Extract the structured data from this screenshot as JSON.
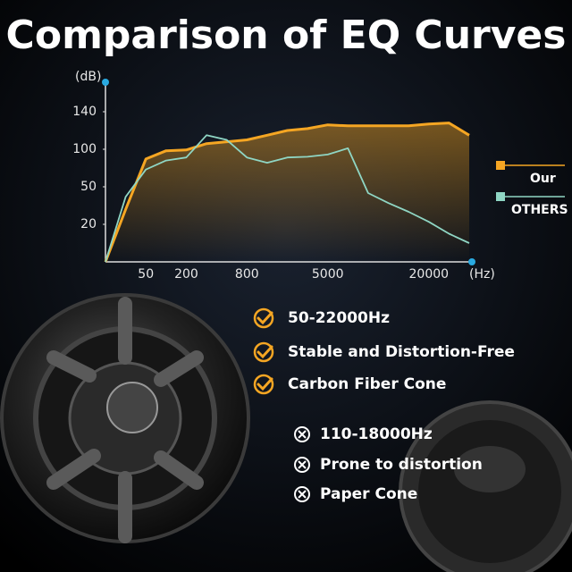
{
  "chart_data": {
    "type": "line",
    "title": "Comparison of EQ Curves",
    "y_unit": "(dB)",
    "x_unit": "(Hz)",
    "categories": [
      null,
      null,
      "50",
      null,
      "200",
      null,
      null,
      "800",
      null,
      null,
      null,
      "5000",
      null,
      null,
      null,
      null,
      "20000",
      null,
      null
    ],
    "ylim": [
      0,
      160
    ],
    "yticks": [
      20,
      50,
      100,
      140
    ],
    "y_scale": "tick-spaced",
    "legend": "right",
    "series": [
      {
        "name": "Our",
        "color": "#f5a623",
        "values": [
          0,
          32,
          87,
          98,
          99,
          106,
          108,
          110,
          115,
          120,
          122,
          126,
          125,
          125,
          125,
          125,
          127,
          128,
          115
        ]
      },
      {
        "name": "OTHERS",
        "color": "#8fd6c4",
        "values": [
          0,
          42,
          73,
          85,
          89,
          115,
          110,
          89,
          82,
          89,
          90,
          93,
          101,
          45,
          37,
          30,
          22,
          15,
          10
        ]
      }
    ]
  },
  "features": {
    "ours": [
      "50-22000Hz",
      "Stable and Distortion-Free",
      "Carbon Fiber Cone"
    ],
    "others": [
      "110-18000Hz",
      "Prone to distortion",
      "Paper Cone"
    ]
  }
}
